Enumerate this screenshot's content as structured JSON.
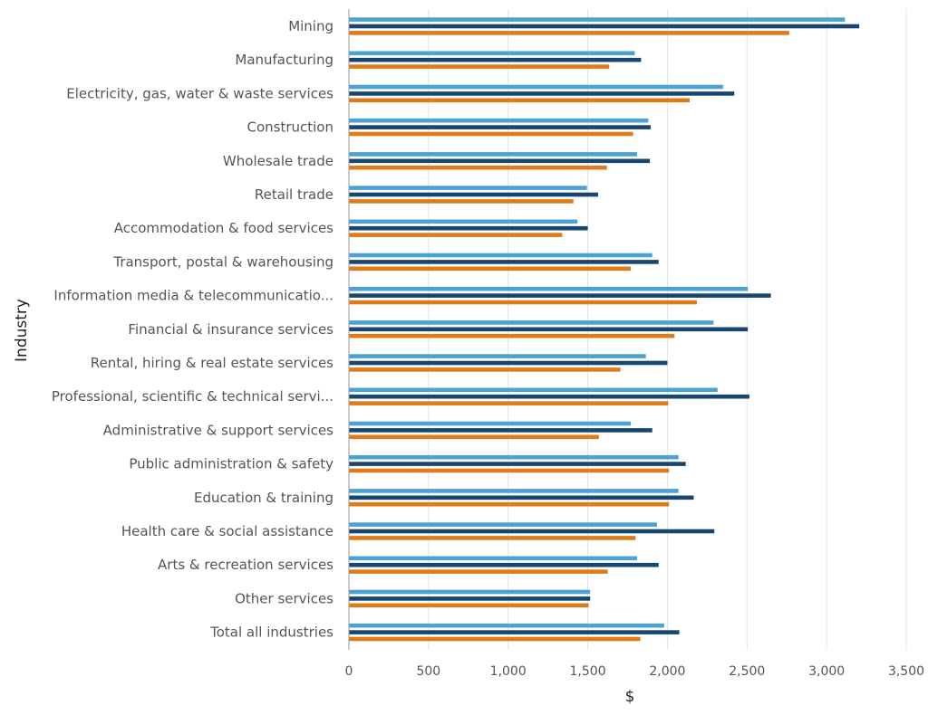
{
  "colors": {
    "series_a": "#4aa3d4",
    "series_b": "#17476e",
    "series_c": "#e07b1a"
  },
  "chart_data": {
    "type": "bar",
    "orientation": "horizontal",
    "ylabel": "Industry",
    "xlabel": "$",
    "xlim": [
      0,
      3500
    ],
    "xticks": [
      0,
      500,
      1000,
      1500,
      2000,
      2500,
      3000,
      3500
    ],
    "xtick_labels": [
      "0",
      "500",
      "1,000",
      "1,500",
      "2,000",
      "2,500",
      "3,000",
      "3,500"
    ],
    "grid": true,
    "legend": "none",
    "categories": [
      "Mining",
      "Manufacturing",
      "Electricity, gas, water & waste services",
      "Construction",
      "Wholesale trade",
      "Retail trade",
      "Accommodation & food services",
      "Transport, postal & warehousing",
      "Information media & telecommunicatio...",
      "Financial & insurance services",
      "Rental, hiring & real estate services",
      "Professional, scientific & technical servi...",
      "Administrative & support services",
      "Public administration & safety",
      "Education & training",
      "Health care & social assistance",
      "Arts & recreation services",
      "Other services",
      "Total all industries"
    ],
    "series": [
      {
        "values": [
          3115,
          1795,
          2350,
          1880,
          1810,
          1495,
          1435,
          1905,
          2505,
          2290,
          1865,
          2315,
          1770,
          2070,
          2070,
          1935,
          1810,
          1515,
          1980
        ]
      },
      {
        "values": [
          3205,
          1835,
          2420,
          1895,
          1890,
          1565,
          1500,
          1945,
          2650,
          2505,
          2000,
          2515,
          1905,
          2115,
          2165,
          2295,
          1945,
          1515,
          2075
        ]
      },
      {
        "values": [
          2765,
          1635,
          2140,
          1785,
          1620,
          1410,
          1340,
          1770,
          2185,
          2045,
          1705,
          2005,
          1570,
          2010,
          2010,
          1800,
          1625,
          1505,
          1830
        ]
      }
    ]
  }
}
